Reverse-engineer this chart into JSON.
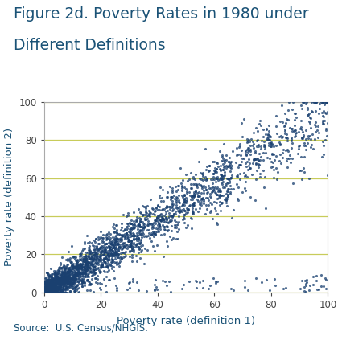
{
  "title_line1": "Figure 2d. Poverty Rates in 1980 under",
  "title_line2": "Different Definitions",
  "xlabel": "Poverty rate (definition 1)",
  "ylabel": "Poverty rate (definition 2)",
  "source": "Source:  U.S. Census/NHGIS.",
  "xlim": [
    0,
    100
  ],
  "ylim": [
    0,
    100
  ],
  "xticks": [
    0,
    20,
    40,
    60,
    80,
    100
  ],
  "yticks": [
    0,
    20,
    40,
    60,
    80,
    100
  ],
  "dot_color": "#1a4070",
  "dot_size": 5,
  "dot_alpha": 0.75,
  "n_points": 2800,
  "seed": 42,
  "background_color": "#ffffff",
  "grid_color": "#c8cc5a",
  "title_color": "#1a5276",
  "axis_label_color": "#1a5276",
  "title_fontsize": 13.5,
  "axis_label_fontsize": 9.5,
  "source_fontsize": 8.5,
  "tick_fontsize": 8.5,
  "spine_color": "#aaaaaa"
}
